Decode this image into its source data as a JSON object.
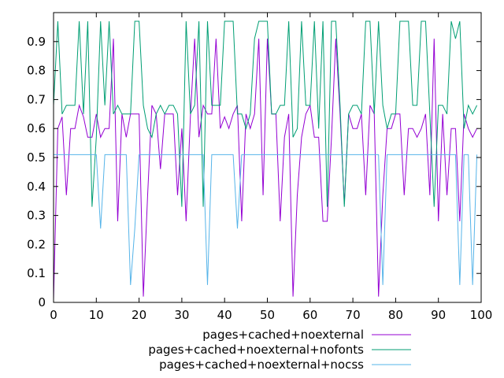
{
  "chart_data": {
    "type": "line",
    "xlim": [
      0,
      100
    ],
    "ylim": [
      0,
      1.0
    ],
    "x_ticks": [
      0,
      10,
      20,
      30,
      40,
      50,
      60,
      70,
      80,
      90,
      100
    ],
    "y_ticks": [
      0,
      0.1,
      0.2,
      0.3,
      0.4,
      0.5,
      0.6,
      0.7,
      0.8,
      0.9
    ],
    "x_tick_labels": [
      "0",
      "10",
      "20",
      "30",
      "40",
      "50",
      "60",
      "70",
      "80",
      "90",
      "100"
    ],
    "y_tick_labels": [
      "0",
      "0.1",
      "0.2",
      "0.3",
      "0.4",
      "0.5",
      "0.6",
      "0.7",
      "0.8",
      "0.9"
    ],
    "grid": false,
    "legend_position": "bottom-center",
    "x": [
      0,
      1,
      2,
      3,
      4,
      5,
      6,
      7,
      8,
      9,
      10,
      11,
      12,
      13,
      14,
      15,
      16,
      17,
      18,
      19,
      20,
      21,
      22,
      23,
      24,
      25,
      26,
      27,
      28,
      29,
      30,
      31,
      32,
      33,
      34,
      35,
      36,
      37,
      38,
      39,
      40,
      41,
      42,
      43,
      44,
      45,
      46,
      47,
      48,
      49,
      50,
      51,
      52,
      53,
      54,
      55,
      56,
      57,
      58,
      59,
      60,
      61,
      62,
      63,
      64,
      65,
      66,
      67,
      68,
      69,
      70,
      71,
      72,
      73,
      74,
      75,
      76,
      77,
      78,
      79,
      80,
      81,
      82,
      83,
      84,
      85,
      86,
      87,
      88,
      89,
      90,
      91,
      92,
      93,
      94,
      95,
      96,
      97,
      98,
      99
    ],
    "series": [
      {
        "name": "pages+cached+noexternal",
        "color": "#9400d3",
        "values": [
          0.01,
          0.6,
          0.64,
          0.37,
          0.6,
          0.6,
          0.68,
          0.64,
          0.57,
          0.57,
          0.65,
          0.57,
          0.6,
          0.6,
          0.91,
          0.28,
          0.65,
          0.57,
          0.65,
          0.65,
          0.65,
          0.02,
          0.37,
          0.68,
          0.65,
          0.46,
          0.65,
          0.65,
          0.65,
          0.37,
          0.6,
          0.28,
          0.64,
          0.91,
          0.57,
          0.68,
          0.65,
          0.65,
          0.91,
          0.6,
          0.64,
          0.6,
          0.65,
          0.68,
          0.28,
          0.65,
          0.6,
          0.65,
          0.91,
          0.37,
          0.91,
          0.65,
          0.65,
          0.28,
          0.57,
          0.65,
          0.02,
          0.37,
          0.57,
          0.65,
          0.68,
          0.57,
          0.57,
          0.28,
          0.28,
          0.57,
          0.91,
          0.65,
          0.34,
          0.65,
          0.6,
          0.6,
          0.65,
          0.37,
          0.68,
          0.65,
          0.02,
          0.37,
          0.6,
          0.6,
          0.65,
          0.65,
          0.37,
          0.6,
          0.6,
          0.57,
          0.6,
          0.65,
          0.37,
          0.91,
          0.28,
          0.65,
          0.37,
          0.6,
          0.6,
          0.28,
          0.65,
          0.6,
          0.57,
          0.6
        ]
      },
      {
        "name": "pages+cached+noexternal+nofonts",
        "color": "#009e73",
        "values": [
          0.68,
          0.97,
          0.65,
          0.68,
          0.68,
          0.68,
          0.97,
          0.65,
          0.97,
          0.33,
          0.57,
          0.97,
          0.68,
          0.97,
          0.65,
          0.68,
          0.65,
          0.65,
          0.65,
          0.97,
          0.97,
          0.68,
          0.6,
          0.57,
          0.65,
          0.68,
          0.65,
          0.68,
          0.68,
          0.65,
          0.33,
          0.97,
          0.65,
          0.68,
          0.97,
          0.33,
          0.97,
          0.68,
          0.68,
          0.68,
          0.97,
          0.97,
          0.97,
          0.65,
          0.65,
          0.6,
          0.65,
          0.91,
          0.97,
          0.97,
          0.97,
          0.65,
          0.65,
          0.68,
          0.68,
          0.97,
          0.57,
          0.6,
          0.97,
          0.68,
          0.68,
          0.97,
          0.6,
          0.97,
          0.33,
          0.97,
          0.97,
          0.68,
          0.33,
          0.65,
          0.68,
          0.68,
          0.65,
          0.97,
          0.97,
          0.65,
          0.97,
          0.68,
          0.6,
          0.65,
          0.65,
          0.97,
          0.97,
          0.97,
          0.68,
          0.68,
          0.97,
          0.97,
          0.65,
          0.33,
          0.68,
          0.68,
          0.65,
          0.97,
          0.91,
          0.97,
          0.6,
          0.68,
          0.65,
          0.68
        ]
      },
      {
        "name": "pages+cached+noexternal+nocss",
        "color": "#56b4e9",
        "values": [
          0.51,
          0.51,
          0.51,
          0.51,
          0.51,
          0.51,
          0.51,
          0.51,
          0.51,
          0.51,
          0.51,
          0.255,
          0.51,
          0.51,
          0.51,
          0.51,
          0.51,
          0.51,
          0.06,
          0.255,
          0.51,
          0.51,
          0.51,
          0.51,
          0.51,
          0.51,
          0.51,
          0.51,
          0.51,
          0.51,
          0.51,
          0.51,
          0.51,
          0.51,
          0.51,
          0.51,
          0.06,
          0.51,
          0.51,
          0.51,
          0.51,
          0.51,
          0.51,
          0.255,
          0.51,
          0.51,
          0.51,
          0.51,
          0.51,
          0.51,
          0.51,
          0.51,
          0.51,
          0.51,
          0.51,
          0.51,
          0.51,
          0.51,
          0.51,
          0.51,
          0.51,
          0.51,
          0.51,
          0.51,
          0.51,
          0.51,
          0.51,
          0.51,
          0.51,
          0.51,
          0.51,
          0.51,
          0.51,
          0.51,
          0.51,
          0.51,
          0.51,
          0.06,
          0.51,
          0.51,
          0.51,
          0.51,
          0.51,
          0.51,
          0.51,
          0.51,
          0.51,
          0.51,
          0.51,
          0.51,
          0.51,
          0.51,
          0.51,
          0.51,
          0.51,
          0.06,
          0.51,
          0.51,
          0.06,
          0.51
        ]
      }
    ]
  }
}
